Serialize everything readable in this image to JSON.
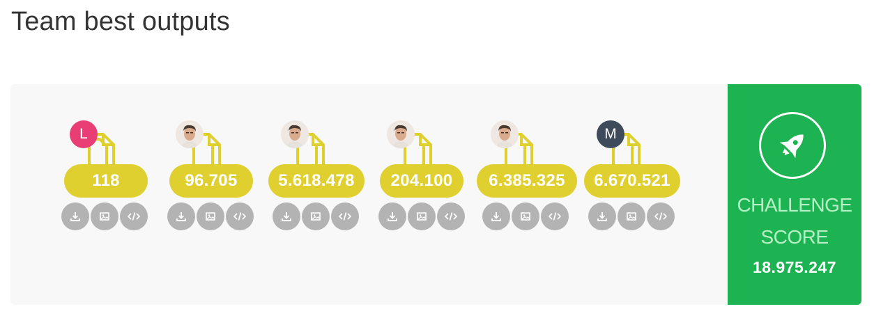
{
  "page": {
    "title": "Team best outputs"
  },
  "outputs": [
    {
      "avatar_type": "initial",
      "initial": "L",
      "avatar_color": "#e93d76",
      "score": "118"
    },
    {
      "avatar_type": "photo",
      "initial": "",
      "avatar_color": "#efe7e1",
      "score": "96.705"
    },
    {
      "avatar_type": "photo",
      "initial": "",
      "avatar_color": "#efe7e1",
      "score": "5.618.478"
    },
    {
      "avatar_type": "photo",
      "initial": "",
      "avatar_color": "#efe7e1",
      "score": "204.100"
    },
    {
      "avatar_type": "photo",
      "initial": "",
      "avatar_color": "#efe7e1",
      "score": "6.385.325"
    },
    {
      "avatar_type": "initial",
      "initial": "M",
      "avatar_color": "#3d4b5a",
      "score": "6.670.521"
    }
  ],
  "actions": [
    "download-icon",
    "image-icon",
    "code-icon"
  ],
  "challenge": {
    "label_line1": "CHALLENGE",
    "label_line2": "SCORE",
    "value": "18.975.247",
    "icon": "rocket-icon"
  },
  "colors": {
    "pill": "#dfd030",
    "connector": "#dfd030",
    "action": "#b3b3b3",
    "score_card": "#1db352",
    "score_label": "#b7f0c6"
  }
}
